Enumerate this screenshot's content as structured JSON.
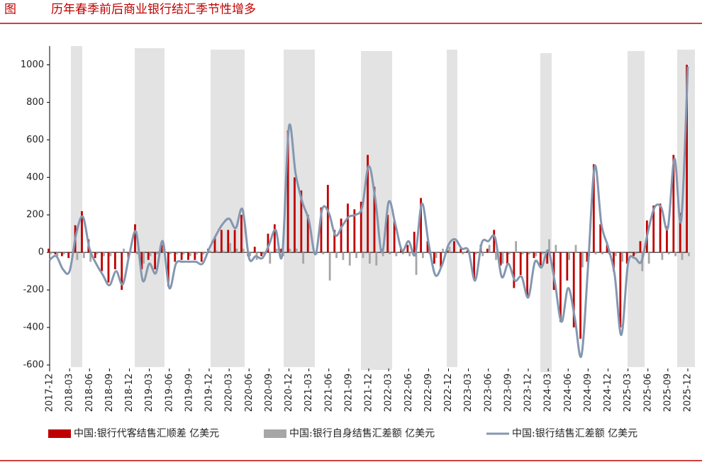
{
  "chart_data": {
    "type": "bar-line",
    "title": "历年春季前后商业银行结汇季节性增多",
    "figure_label": "图",
    "categories": [
      "2017-12",
      null,
      null,
      "2018-03",
      null,
      null,
      "2018-06",
      null,
      null,
      "2018-09",
      null,
      null,
      "2018-12",
      null,
      null,
      "2019-03",
      null,
      null,
      "2019-06",
      null,
      null,
      "2019-09",
      null,
      null,
      "2019-12",
      null,
      null,
      "2020-03",
      null,
      null,
      "2020-06",
      null,
      null,
      "2020-09",
      null,
      null,
      "2020-12",
      null,
      null,
      "2021-03",
      null,
      null,
      "2021-06",
      null,
      null,
      "2021-09",
      null,
      null,
      "2021-12",
      null,
      null,
      "2022-03",
      null,
      null,
      "2022-06",
      null,
      null,
      "2022-09",
      null,
      null,
      "2022-12",
      null,
      null,
      "2023-03",
      null,
      null,
      "2023-06",
      null,
      null,
      "2023-09",
      null,
      null,
      "2023-12",
      null,
      null,
      "2024-03",
      null,
      null,
      "2024-06",
      null,
      null,
      "2024-09",
      null,
      null,
      "2024-12",
      null,
      null,
      "2025-03",
      null,
      null,
      "2025-06",
      null,
      null,
      "2025-09",
      null,
      null,
      "2025-12"
    ],
    "series": [
      {
        "name": "中国:银行代客结售汇顺差 亿美元",
        "kind": "bar",
        "color": "#c00000",
        "values": [
          20,
          -10,
          -20,
          -30,
          145,
          220,
          70,
          -30,
          -100,
          -160,
          -90,
          -200,
          -30,
          150,
          -90,
          -40,
          -90,
          40,
          -180,
          -50,
          -40,
          -40,
          -40,
          -50,
          20,
          80,
          120,
          120,
          120,
          200,
          -20,
          30,
          -20,
          100,
          150,
          20,
          650,
          400,
          330,
          200,
          0,
          240,
          360,
          120,
          180,
          260,
          230,
          270,
          520,
          350,
          20,
          200,
          170,
          20,
          40,
          110,
          290,
          60,
          -60,
          -80,
          10,
          60,
          20,
          10,
          -140,
          40,
          20,
          120,
          -70,
          -60,
          -190,
          -120,
          -230,
          -30,
          -70,
          -60,
          -200,
          -370,
          -150,
          -400,
          -460,
          -50,
          470,
          150,
          40,
          -100,
          -400,
          -60,
          -20,
          60,
          170,
          250,
          260,
          140,
          520,
          210,
          1000
        ]
      },
      {
        "name": "中国:银行自身结售汇差额 亿美元",
        "kind": "bar",
        "color": "#a6a6a6",
        "values": [
          -10,
          -20,
          -10,
          0,
          -40,
          -30,
          -50,
          -10,
          -20,
          -20,
          0,
          20,
          20,
          -10,
          -60,
          -20,
          -10,
          20,
          -10,
          -10,
          -10,
          -20,
          -10,
          -10,
          10,
          10,
          10,
          50,
          20,
          20,
          -20,
          -40,
          -10,
          -60,
          20,
          -20,
          20,
          20,
          -60,
          0,
          -10,
          -10,
          -150,
          -30,
          -40,
          -70,
          -30,
          -30,
          -60,
          -70,
          -20,
          -10,
          -20,
          -10,
          -20,
          -120,
          -30,
          -10,
          -30,
          20,
          30,
          0,
          -10,
          0,
          -10,
          -20,
          40,
          -40,
          -60,
          -10,
          60,
          -10,
          -10,
          -20,
          -10,
          70,
          40,
          0,
          -40,
          40,
          -80,
          -20,
          -10,
          -10,
          -10,
          -20,
          -50,
          0,
          -10,
          -100,
          -60,
          0,
          -40,
          -10,
          -20,
          -40,
          -20
        ]
      },
      {
        "name": "中国:银行结售汇差额 亿美元",
        "kind": "line",
        "color": "#8497b0",
        "values": [
          -40,
          -20,
          -90,
          -100,
          100,
          190,
          20,
          -60,
          -120,
          -175,
          -100,
          -170,
          -10,
          110,
          -150,
          -60,
          -110,
          60,
          -190,
          -60,
          -50,
          -50,
          -50,
          -60,
          20,
          90,
          150,
          180,
          130,
          230,
          -30,
          -20,
          -30,
          40,
          120,
          -10,
          670,
          420,
          270,
          170,
          -10,
          230,
          210,
          90,
          140,
          190,
          200,
          240,
          460,
          280,
          0,
          270,
          150,
          10,
          60,
          -10,
          260,
          50,
          -120,
          -70,
          40,
          70,
          20,
          10,
          -150,
          50,
          60,
          80,
          -130,
          -60,
          -150,
          -130,
          -240,
          -50,
          -80,
          10,
          -160,
          -370,
          -190,
          -350,
          -550,
          -70,
          460,
          150,
          30,
          -120,
          -440,
          -60,
          -30,
          -50,
          110,
          240,
          240,
          130,
          500,
          170,
          990
        ]
      }
    ],
    "ylim": [
      -600,
      1100
    ],
    "yticks": [
      -600,
      -400,
      -200,
      0,
      200,
      400,
      600,
      800,
      1000
    ]
  }
}
